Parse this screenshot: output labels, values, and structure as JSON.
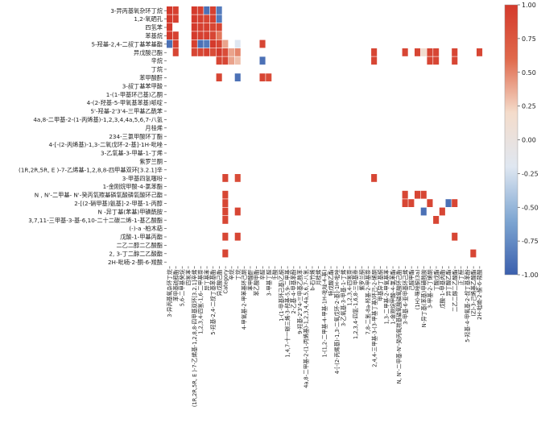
{
  "chart_data": {
    "type": "heatmap",
    "title": "",
    "xlabel": "",
    "ylabel": "",
    "row_labels": [
      "3-异丙基氧杂环丁烷",
      "1,2-氧硒孔",
      "四氢苯",
      "苯基烷",
      "5-羟基-2,4-二叔丁基苯基酯",
      "异戊酸己酯",
      "辛烷",
      "丁烷",
      "苯甲酸酐",
      "3-叔丁基苯甲酸",
      "1-(1-甲基环己基)乙酮",
      "4-(2-羟基-5-甲氧基苯基)哌啶",
      "5'-羟基-2'3'4-三甲基乙酰苯",
      "4a,8-二甲基-2-(1-丙烯基)-1,2,3,4,4a,5,6,7-八氢",
      "月桂烯",
      "234-三氯甲酸环丁酯",
      "4-[-(2-丙烯基)-1,3-二氧戊环-2-基]-1H-吡唑",
      "3-乙氧基-3-甲基-1-丁烯",
      "紫罗兰酮",
      "(1R,2R,5R, E )-7-乙烯基-1,2,8,8-四甲基双环[3.2.1]辛",
      "3-甲基四氢噻吩",
      "1-金刚烷甲酸-4-氯苯酯",
      "N , N'-二甲基- N'-癸丙氧羰基磷氧酸磷氧酸环己酯",
      "2-[(2-硝甲基)氨基]-2-甲基-1-丙醇",
      "N -异丁基(苯基)甲磺酰胺",
      "3,7,11-三甲基-3-基-6,10-二十二碳二烯-1-基乙酸酯",
      "(-)-a -柏木萜",
      "戊酸-1-甲基丙酯",
      "二乙二醇二乙酸酯",
      "2, 3-丁二醇二乙酸酯",
      "2H-吡喃-2-酮-6-羧酸"
    ],
    "col_labels": [
      "3-异丙基氧杂环丁烷",
      "苯甲基硫醇酯",
      "5,6-二甲基癸烷",
      "四氢苯",
      "(1R,2R,5R, E )-7-乙烯基-1,2,8,8-四甲基双环[3.2.1]辛烯",
      "1,2,3,4-四氢-1,6-二甲基萘",
      "异丁基苯",
      "5-羟基-2,4-二叔丁基苯基酯",
      "异戊酸己酯",
      "Category",
      "辛烷",
      "丁烷",
      "4-甲氧基-2-甲苯基环己酮",
      "苯甲酸酐",
      "苯乙酸甲酯",
      "辛醛",
      "3-甲基丁醛",
      "壬酸",
      "1-(1-甲基环己基)乙酮",
      "1,4,7-十一碳三烯-3-羟基-5,9-二甲基",
      "2-乙基-4-甲基苯酚",
      "9-羟基-2'3'4-三甲基乙酰苯",
      "4a,8-二甲基-2-(1-丙烯基)-1,2,3,4,4a,5,6,7-八氢",
      "b-石竹烯",
      "月桂烯",
      "1-(1,2-二甲基-4-甲基-1H-吡唑-4-基)",
      "特戊酸乙酯",
      "4-[-(2-丙烯基)-1,3-二氧戊环-2-基]-1H-吡唑",
      "3-乙氧基-3-甲基-1-丁烯",
      "1,2,3,4-四氢萘",
      "1,2,3,4-四氢-1,6,8-三甲基萘",
      "紫罗兰酮",
      "7,8-二氢-8a-羟基-2-甲基萘",
      "2,4,4-三甲基-3-(3-甲基丁基)环己-2-烯酮",
      "甲基异丁基酮",
      "1,3-二甲基-2-甲氧基苯",
      "1-金刚烷甲酸-4-氯苯酯",
      "N, N'-二甲基-N'-癸丙氧羰基磷氧酸磷氧酸环己酯",
      "3-甲基-6-亚甲基环己烯",
      "己醛甲酯",
      "(1H)-咪唑酮(3a)",
      "N-异丁基(苯基)甲磺酰胺",
      "3-甲基-2-丁烯酮",
      "丁酸戊酯",
      "戊酸-1-甲基丙酯",
      "异丁酸乙酯",
      "二乙二醇二乙酸酯",
      "正丁醛",
      "5-羟基-4-甲氧基-2-叔丁基苯酚",
      "(Z)-3-己烯基乙酸酯",
      "2H-吡喃-2-酮-6-羧酸"
    ],
    "vmin": -1.0,
    "vmax": 1.0,
    "colorbar_ticks": [
      "1.00",
      "0.75",
      "0.50",
      "0.25",
      "0.00",
      "-0.25",
      "-0.50",
      "-0.75",
      "-1.00"
    ],
    "colormap": [
      "#3b5fad",
      "#7ea6d2",
      "#dfe7f1",
      "#f4dccb",
      "#e0694c",
      "#d43a2c"
    ],
    "cells": [
      [
        0,
        0,
        1.0
      ],
      [
        0,
        1,
        0.95
      ],
      [
        0,
        4,
        1.0
      ],
      [
        0,
        5,
        0.95
      ],
      [
        0,
        6,
        -0.9
      ],
      [
        0,
        7,
        0.95
      ],
      [
        0,
        8,
        -0.85
      ],
      [
        1,
        0,
        1.0
      ],
      [
        1,
        1,
        0.95
      ],
      [
        1,
        4,
        1.0
      ],
      [
        1,
        5,
        0.95
      ],
      [
        1,
        6,
        0.9
      ],
      [
        1,
        7,
        0.95
      ],
      [
        1,
        8,
        -0.85
      ],
      [
        2,
        0,
        1.0
      ],
      [
        2,
        4,
        1.0
      ],
      [
        2,
        5,
        0.95
      ],
      [
        2,
        6,
        0.95
      ],
      [
        2,
        7,
        0.9
      ],
      [
        2,
        8,
        0.9
      ],
      [
        3,
        0,
        1.0
      ],
      [
        3,
        1,
        0.95
      ],
      [
        3,
        4,
        1.0
      ],
      [
        3,
        5,
        0.95
      ],
      [
        3,
        6,
        0.95
      ],
      [
        3,
        7,
        0.9
      ],
      [
        3,
        8,
        0.55
      ],
      [
        4,
        0,
        -0.9
      ],
      [
        4,
        1,
        0.95
      ],
      [
        4,
        4,
        0.95
      ],
      [
        4,
        5,
        -0.9
      ],
      [
        4,
        6,
        -0.85
      ],
      [
        4,
        7,
        1.0
      ],
      [
        4,
        8,
        0.9
      ],
      [
        4,
        9,
        0.4
      ],
      [
        4,
        11,
        -0.2
      ],
      [
        4,
        15,
        0.9
      ],
      [
        5,
        1,
        0.9
      ],
      [
        5,
        4,
        0.9
      ],
      [
        5,
        5,
        0.9
      ],
      [
        5,
        6,
        0.95
      ],
      [
        5,
        7,
        0.85
      ],
      [
        5,
        8,
        1.0
      ],
      [
        5,
        9,
        0.85
      ],
      [
        5,
        10,
        0.4
      ],
      [
        5,
        11,
        0.5
      ],
      [
        5,
        33,
        0.9
      ],
      [
        5,
        38,
        0.9
      ],
      [
        5,
        40,
        0.9
      ],
      [
        5,
        41,
        0.15
      ],
      [
        5,
        42,
        0.9
      ],
      [
        5,
        43,
        0.9
      ],
      [
        5,
        46,
        0.9
      ],
      [
        5,
        50,
        0.9
      ],
      [
        6,
        8,
        0.9
      ],
      [
        6,
        9,
        0.9
      ],
      [
        6,
        10,
        0.4
      ],
      [
        6,
        11,
        0.3
      ],
      [
        6,
        15,
        -0.9
      ],
      [
        6,
        33,
        0.9
      ],
      [
        6,
        42,
        0.9
      ],
      [
        6,
        43,
        0.9
      ],
      [
        6,
        46,
        0.9
      ],
      [
        8,
        8,
        0.9
      ],
      [
        8,
        11,
        -0.9
      ],
      [
        8,
        15,
        0.9
      ],
      [
        8,
        16,
        0.85
      ],
      [
        20,
        9,
        0.9
      ],
      [
        20,
        11,
        0.85
      ],
      [
        20,
        33,
        0.9
      ],
      [
        22,
        9,
        0.9
      ],
      [
        22,
        38,
        0.9
      ],
      [
        22,
        40,
        0.9
      ],
      [
        22,
        41,
        0.9
      ],
      [
        23,
        9,
        0.9
      ],
      [
        23,
        38,
        0.9
      ],
      [
        23,
        39,
        0.9
      ],
      [
        23,
        42,
        0.9
      ],
      [
        23,
        45,
        -0.9
      ],
      [
        23,
        46,
        0.9
      ],
      [
        24,
        9,
        0.9
      ],
      [
        24,
        11,
        0.9
      ],
      [
        24,
        41,
        -0.9
      ],
      [
        24,
        44,
        0.9
      ],
      [
        25,
        9,
        0.9
      ],
      [
        25,
        43,
        0.9
      ],
      [
        27,
        9,
        0.9
      ],
      [
        27,
        11,
        0.9
      ],
      [
        27,
        46,
        0.9
      ],
      [
        29,
        9,
        0.9
      ],
      [
        29,
        49,
        0.9
      ]
    ]
  }
}
